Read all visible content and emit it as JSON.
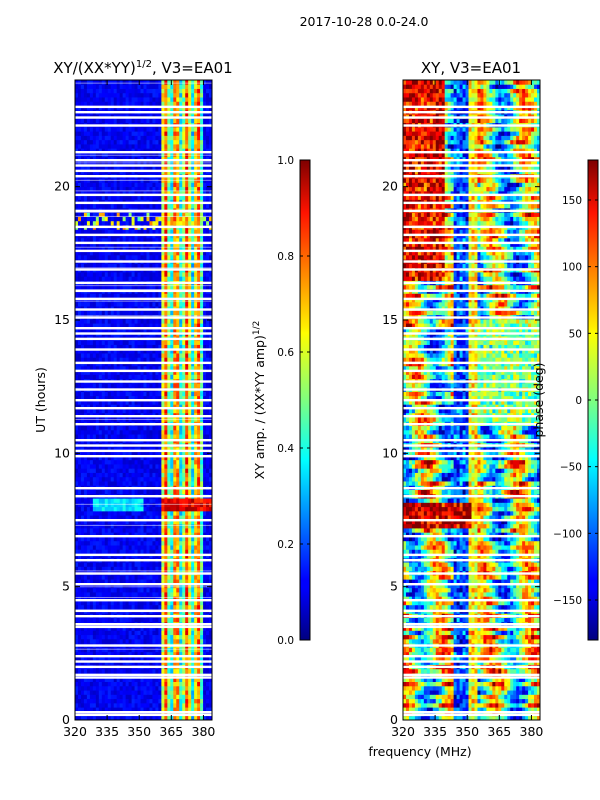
{
  "chart_data": [
    {
      "type": "heatmap",
      "suptitle": "2017-10-28 0.0-24.0",
      "title": "XY/(XX*YY)",
      "title_exponent": "1/2",
      "title_suffix": ", V3=EA01",
      "xlabel": "",
      "ylabel": "UT (hours)",
      "xlim": [
        320,
        384
      ],
      "ylim": [
        0,
        24
      ],
      "xticks": [
        320,
        335,
        350,
        365,
        380
      ],
      "yticks": [
        0,
        5,
        10,
        15,
        20
      ],
      "colormap": "jet",
      "colorbar": {
        "label": "XY amp. / (XX*YY amp)",
        "label_exponent": "1/2",
        "vmin": 0.0,
        "vmax": 1.0,
        "ticks": [
          "0.0",
          "0.2",
          "0.4",
          "0.6",
          "0.8",
          "1.0"
        ]
      },
      "active_band_mhz": [
        361,
        380
      ],
      "flare_hours": [
        7.8,
        8.3
      ],
      "gap_hours": [
        0.2,
        0.3,
        1.6,
        1.7,
        2.0,
        2.2,
        2.4,
        2.8,
        3.5,
        3.6,
        3.9,
        4.1,
        4.5,
        5.1,
        5.5,
        6.0,
        6.2,
        6.9,
        7.5,
        8.4,
        8.7,
        9.9,
        10.1,
        10.3,
        10.5,
        11.1,
        11.4,
        11.7,
        12.0,
        12.4,
        12.7,
        13.1,
        13.4,
        13.9,
        14.3,
        14.5,
        14.7,
        15.1,
        15.4,
        15.8,
        16.1,
        16.4,
        16.9,
        17.2,
        17.6,
        17.9,
        18.2,
        18.5,
        19.1,
        19.4,
        19.7,
        20.4,
        20.6,
        20.8,
        21.0,
        21.3,
        22.3,
        22.6,
        22.8,
        23.0
      ]
    },
    {
      "type": "heatmap",
      "title": "XY, V3=EA01",
      "xlabel": "frequency (MHz)",
      "ylabel": "",
      "xlim": [
        320,
        384
      ],
      "ylim": [
        0,
        24
      ],
      "xticks": [
        320,
        335,
        350,
        365,
        380
      ],
      "yticks": [
        0,
        5,
        10,
        15,
        20
      ],
      "colormap": "jet",
      "colorbar": {
        "label": "phase (deg)",
        "vmin": -180,
        "vmax": 180,
        "ticks": [
          "150",
          "100",
          "50",
          "0",
          "−50",
          "−100",
          "−150"
        ]
      },
      "gap_hours": [
        0.2,
        0.3,
        1.6,
        1.7,
        2.0,
        2.2,
        2.4,
        2.8,
        3.5,
        3.6,
        3.9,
        4.1,
        4.5,
        5.1,
        5.5,
        6.0,
        6.2,
        6.9,
        7.5,
        8.4,
        8.7,
        9.9,
        10.1,
        10.3,
        10.5,
        11.1,
        11.4,
        11.7,
        12.0,
        12.4,
        12.7,
        13.1,
        13.4,
        13.9,
        14.3,
        14.5,
        14.7,
        15.1,
        15.4,
        15.8,
        16.1,
        16.4,
        16.9,
        17.2,
        17.6,
        17.9,
        18.2,
        18.5,
        19.1,
        19.4,
        19.7,
        20.4,
        20.6,
        20.8,
        21.0,
        21.3,
        22.3,
        22.6,
        22.8,
        23.0
      ]
    }
  ]
}
